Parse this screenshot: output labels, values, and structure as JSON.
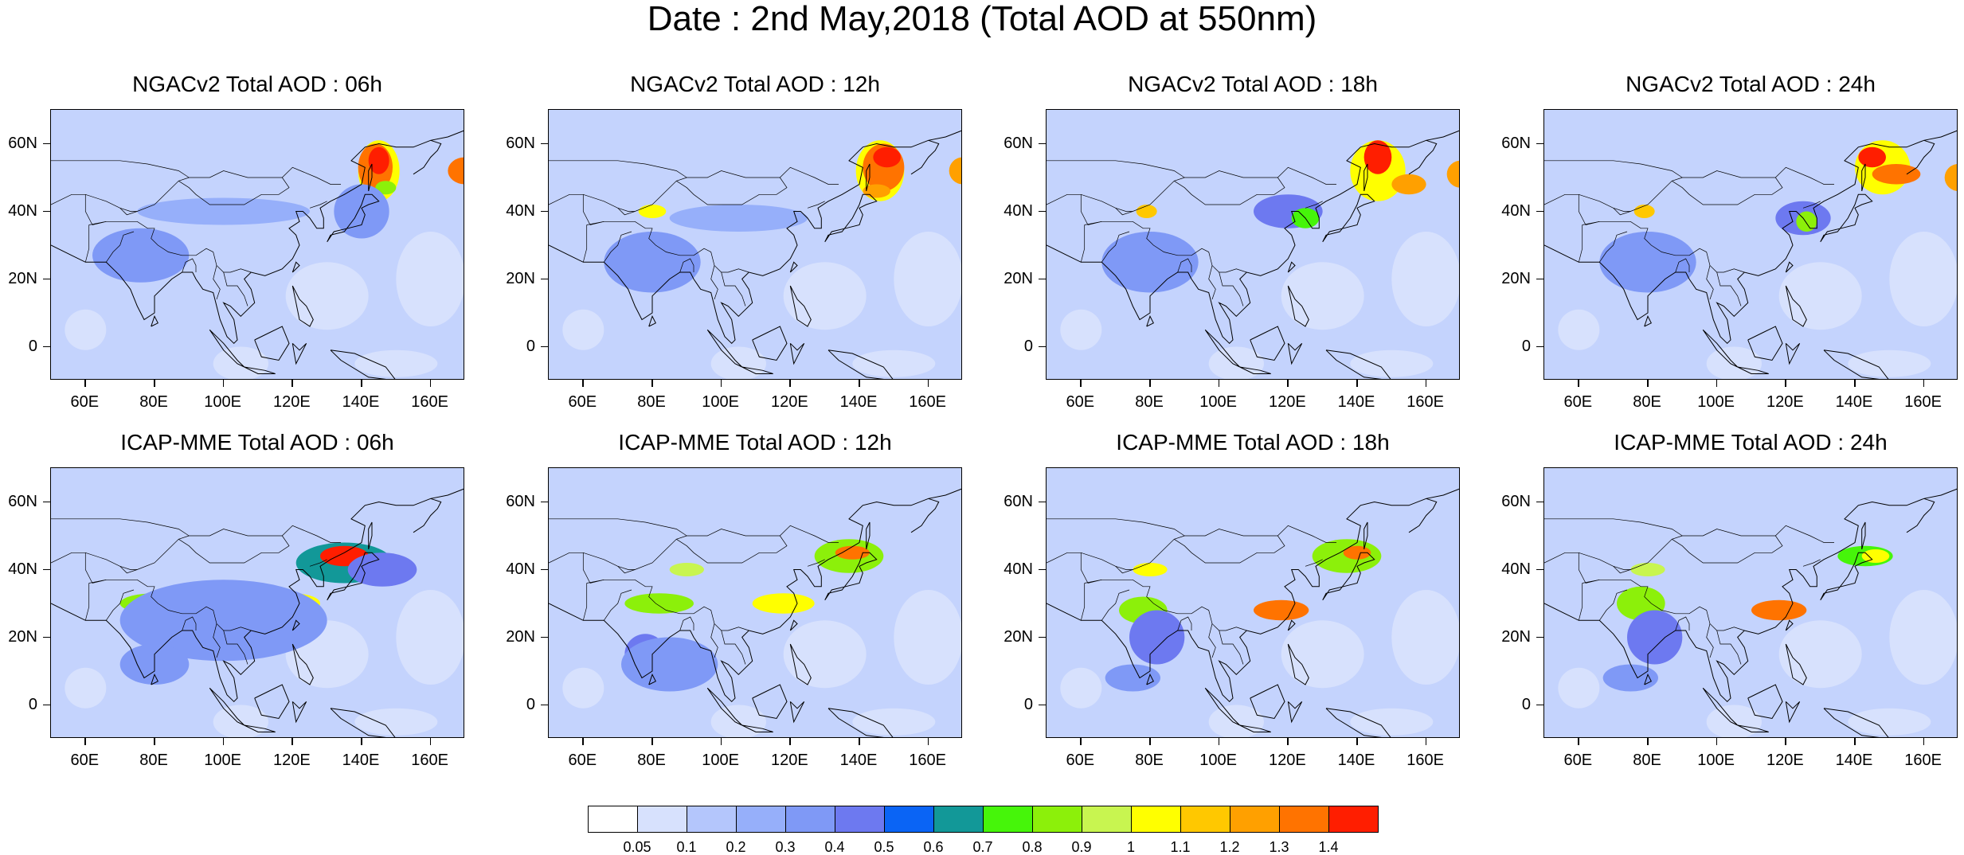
{
  "title": "Date : 2nd May,2018 (Total AOD at 550nm)",
  "axes": {
    "lon_ticks": [
      "60E",
      "80E",
      "100E",
      "120E",
      "140E",
      "160E"
    ],
    "lat_ticks": [
      "60N",
      "40N",
      "20N",
      "0"
    ],
    "lon_range": [
      50,
      170
    ],
    "lat_range": [
      -10,
      70
    ]
  },
  "panels": [
    {
      "title": "NGACv2 Total AOD : 06h",
      "model": "NGACv2",
      "hour": "06h"
    },
    {
      "title": "NGACv2 Total AOD : 12h",
      "model": "NGACv2",
      "hour": "12h"
    },
    {
      "title": "NGACv2 Total AOD : 18h",
      "model": "NGACv2",
      "hour": "18h"
    },
    {
      "title": "NGACv2 Total AOD : 24h",
      "model": "NGACv2",
      "hour": "24h"
    },
    {
      "title": "ICAP-MME Total AOD : 06h",
      "model": "ICAP-MME",
      "hour": "06h"
    },
    {
      "title": "ICAP-MME Total AOD : 12h",
      "model": "ICAP-MME",
      "hour": "12h"
    },
    {
      "title": "ICAP-MME Total AOD : 18h",
      "model": "ICAP-MME",
      "hour": "18h"
    },
    {
      "title": "ICAP-MME Total AOD : 24h",
      "model": "ICAP-MME",
      "hour": "24h"
    }
  ],
  "colorbar": {
    "labels": [
      "0.05",
      "0.1",
      "0.2",
      "0.3",
      "0.4",
      "0.5",
      "0.6",
      "0.7",
      "0.8",
      "0.9",
      "1",
      "1.1",
      "1.2",
      "1.3",
      "1.4"
    ],
    "colors": [
      "#ffffff",
      "#d7e1fd",
      "#b4c6fc",
      "#96affa",
      "#7f99f6",
      "#6d79f0",
      "#0a64f5",
      "#129898",
      "#46f50a",
      "#8cf00a",
      "#c8f550",
      "#ffff00",
      "#ffc800",
      "#ffa000",
      "#ff7300",
      "#ff1e00"
    ]
  },
  "colors": {
    "background_aod": "#c4d3fd",
    "coastline": "#000000"
  }
}
